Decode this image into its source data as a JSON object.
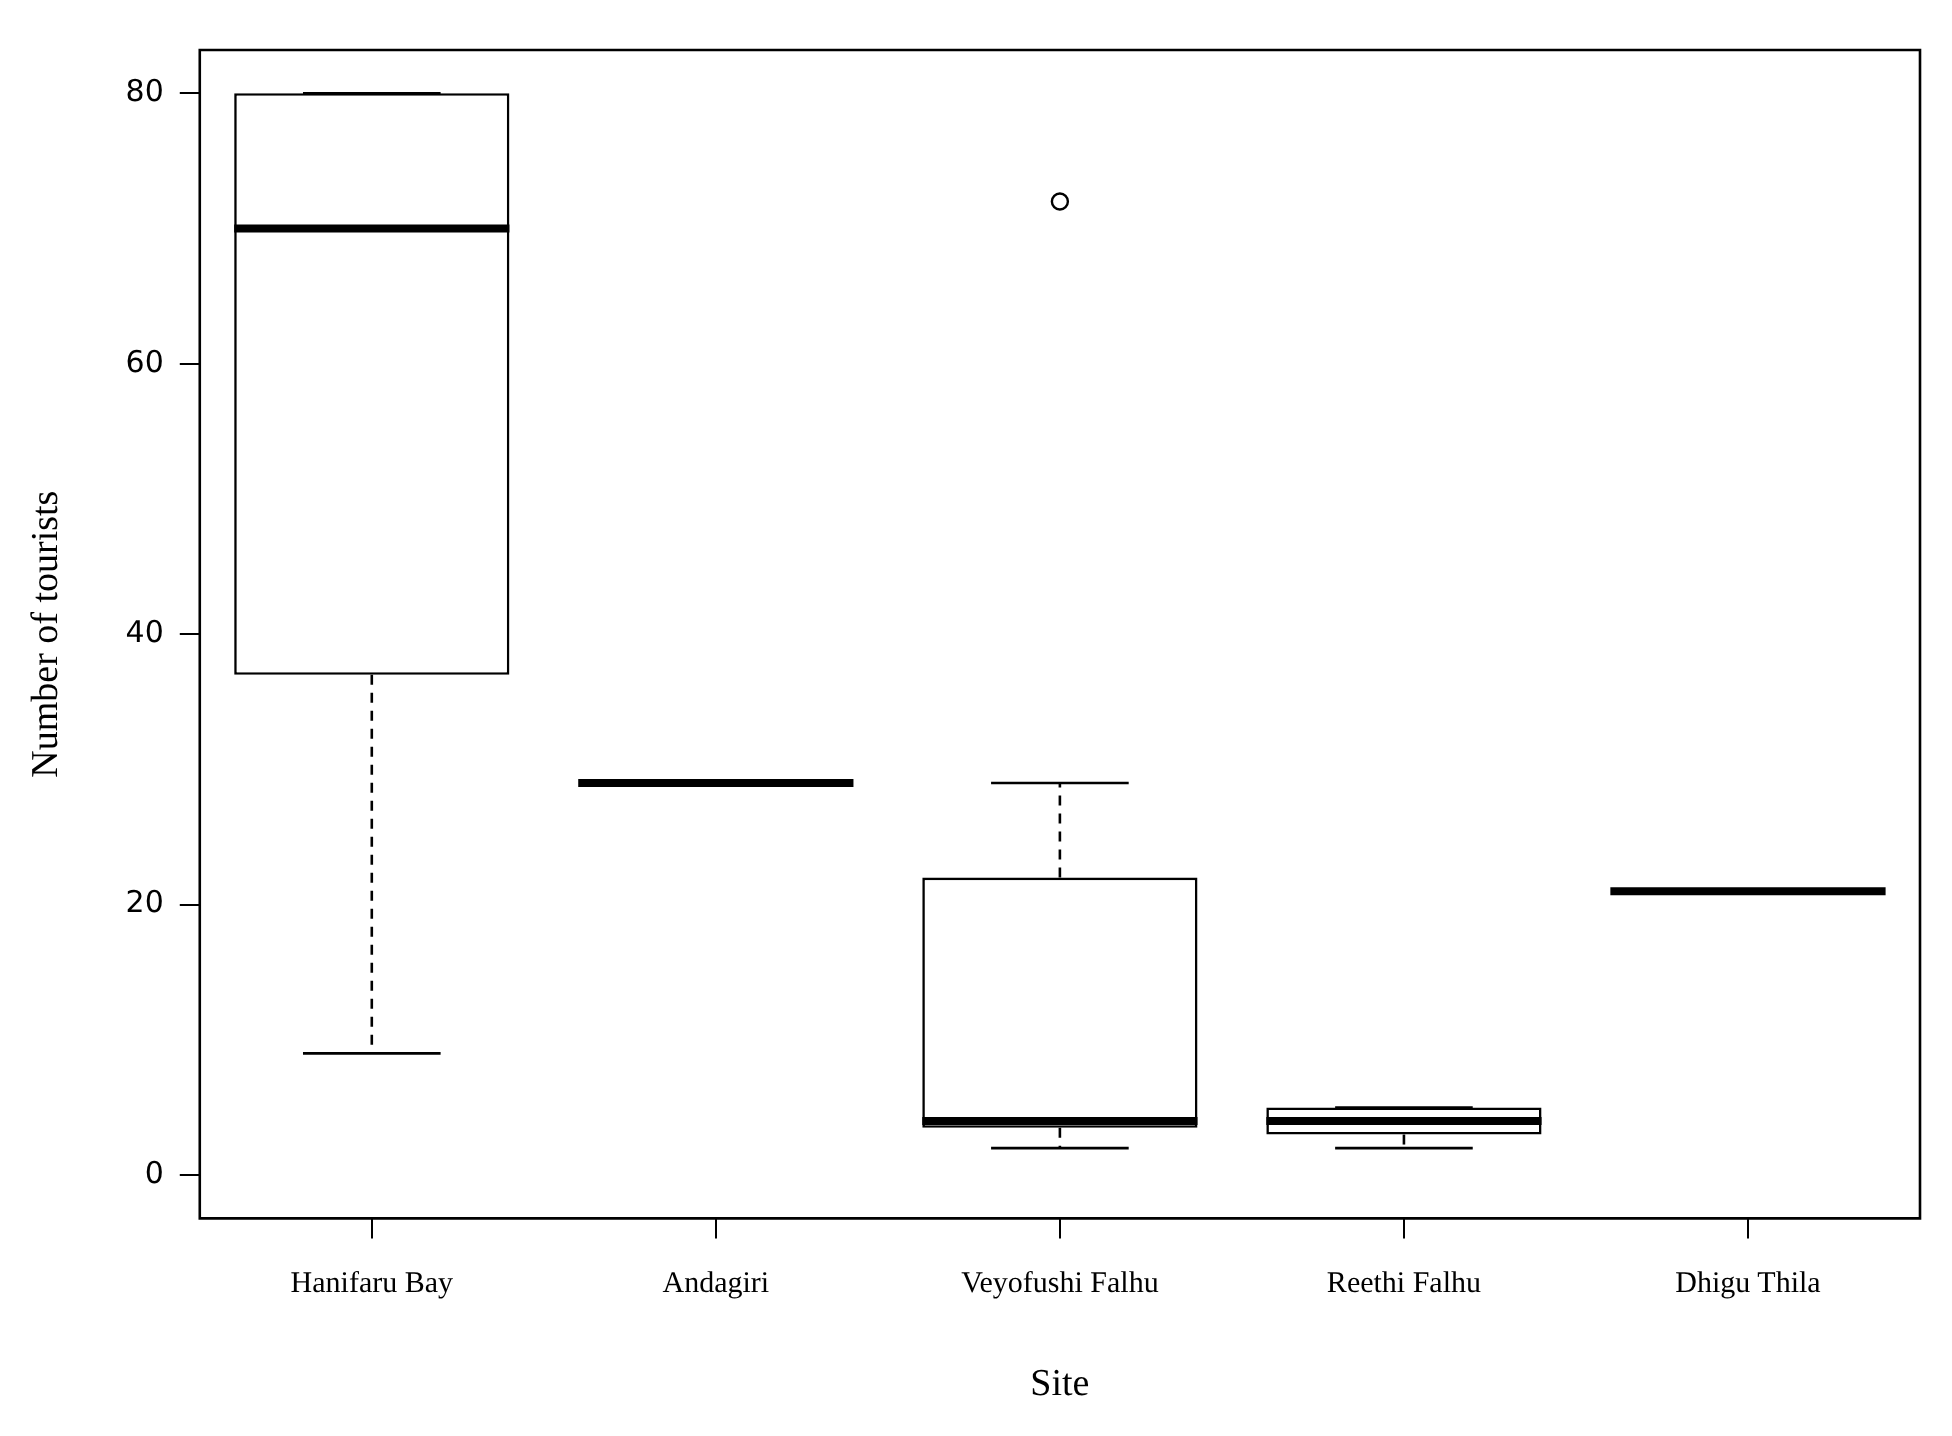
{
  "chart_data": {
    "type": "box",
    "xlabel": "Site",
    "ylabel": "Number of tourists",
    "categories": [
      "Hanifaru Bay",
      "Andagiri",
      "Veyofushi Falhu",
      "Reethi Falhu",
      "Dhigu Thila"
    ],
    "boxes": [
      {
        "low": 9,
        "q1": 37,
        "median": 70,
        "q3": 80,
        "high": 80
      },
      {
        "low": 29,
        "q1": 29,
        "median": 29,
        "q3": 29,
        "high": 29
      },
      {
        "low": 2,
        "q1": 3.5,
        "median": 4,
        "q3": 22,
        "high": 29,
        "outliers": [
          72
        ]
      },
      {
        "low": 2,
        "q1": 3,
        "median": 4,
        "q3": 5,
        "high": 5
      },
      {
        "low": 21,
        "q1": 21,
        "median": 21,
        "q3": 21,
        "high": 21
      }
    ],
    "color": "#000000",
    "ylim": [
      -3.2,
      83.2
    ],
    "yticks": [
      0,
      20,
      40,
      60,
      80
    ],
    "grid": false,
    "legend": false
  }
}
